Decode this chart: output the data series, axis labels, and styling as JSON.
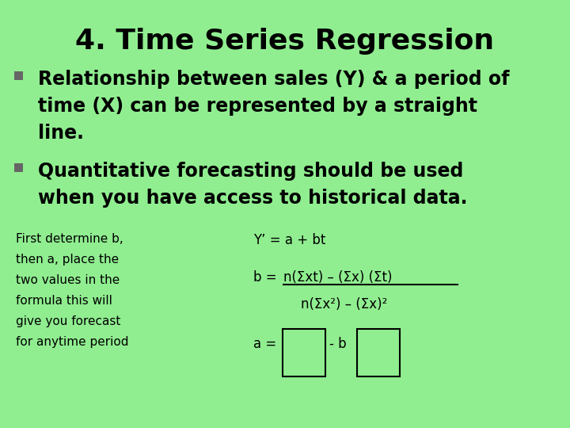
{
  "background_color": "#90EE90",
  "title": "4. Time Series Regression",
  "title_fontsize": 26,
  "bullet_color": "#666666",
  "bullet1_lines": [
    "Relationship between sales (Y) & a period of",
    "time (X) can be represented by a straight",
    "line."
  ],
  "bullet2_lines": [
    "Quantitative forecasting should be used",
    "when you have access to historical data."
  ],
  "left_text_lines": [
    "First determine b,",
    "then a, place the",
    "two values in the",
    "formula this will",
    "give you forecast",
    "for anytime period"
  ],
  "text_color": "#000000",
  "small_fontsize": 11,
  "bullet_fontsize": 17
}
